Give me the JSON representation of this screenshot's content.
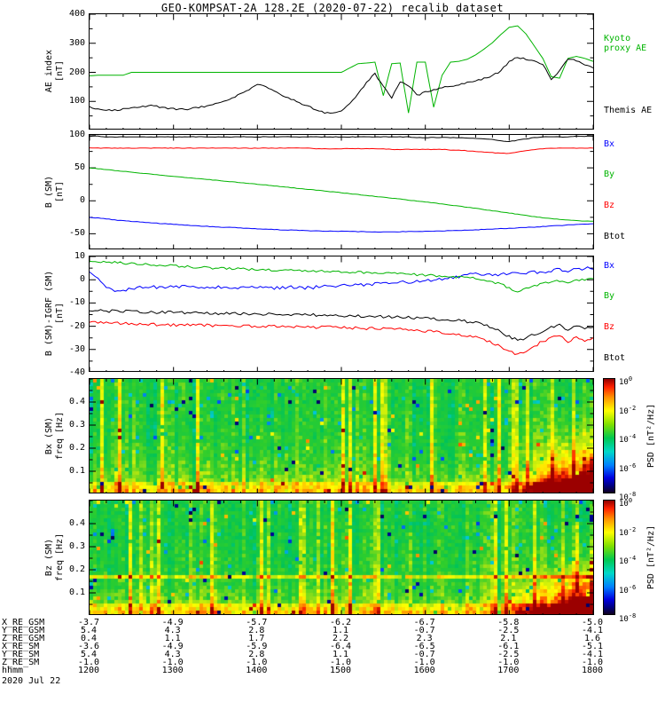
{
  "title": "GEO-KOMPSAT-2A 128.2E (2020-07-22) recalib dataset",
  "colorbar": {
    "label": "PSD [nT²/Hz]",
    "ticks": [
      {
        "base": "10",
        "exp": "0"
      },
      {
        "base": "10",
        "exp": "-2"
      },
      {
        "base": "10",
        "exp": "-4"
      },
      {
        "base": "10",
        "exp": "-6"
      },
      {
        "base": "10",
        "exp": "-8"
      }
    ]
  },
  "footer": {
    "row_labels": [
      "X_RE_GSM",
      "Y_RE_GSM",
      "Z_RE_GSM",
      "X_RE_SM",
      "Y_RE_SM",
      "Z_RE_SM",
      "hhmm"
    ],
    "rows": [
      [
        "-3.7",
        "-4.9",
        "-5.7",
        "-6.2",
        "-6.7",
        "-5.8",
        "-5.0"
      ],
      [
        "5.4",
        "4.3",
        "2.8",
        "1.1",
        "-0.7",
        "-2.5",
        "-4.1"
      ],
      [
        "0.4",
        "1.1",
        "1.7",
        "2.2",
        "2.3",
        "2.1",
        "1.6"
      ],
      [
        "-3.6",
        "-4.9",
        "-5.9",
        "-6.4",
        "-6.5",
        "-6.1",
        "-5.1"
      ],
      [
        "5.4",
        "4.3",
        "2.8",
        "1.1",
        "-0.7",
        "-2.5",
        "-4.1"
      ],
      [
        "-1.0",
        "-1.0",
        "-1.0",
        "-1.0",
        "-1.0",
        "-1.0",
        "-1.0"
      ],
      [
        "1200",
        "1300",
        "1400",
        "1500",
        "1600",
        "1700",
        "1800"
      ]
    ],
    "date": "2020 Jul 22"
  },
  "chart_data": [
    {
      "type": "line",
      "panel": "ae-index",
      "ylabel": "AE index\n[nT]",
      "ylim": [
        0,
        400
      ],
      "yticks": [
        100,
        200,
        300,
        400
      ],
      "xlim": [
        12,
        18
      ],
      "x_unit": "UT decimal hours, 2020 Jul 22",
      "legend": [
        {
          "label": "Kyoto\nproxy AE",
          "color": "#00b400"
        },
        {
          "label": "Themis AE",
          "color": "#000000"
        }
      ],
      "series": [
        {
          "name": "Kyoto proxy AE",
          "color": "#00b400",
          "x_start": 12,
          "x_step": 0.1,
          "jitter": 0,
          "values": [
            188,
            190,
            190,
            190,
            190,
            200,
            200,
            200,
            200,
            200,
            200,
            200,
            200,
            200,
            200,
            200,
            200,
            200,
            200,
            200,
            200,
            200,
            200,
            200,
            200,
            200,
            200,
            200,
            200,
            200,
            200,
            215,
            230,
            232,
            235,
            120,
            230,
            232,
            60,
            235,
            235,
            80,
            190,
            235,
            238,
            245,
            260,
            280,
            302,
            330,
            355,
            360,
            332,
            290,
            248,
            185,
            180,
            248,
            255,
            248,
            238
          ]
        },
        {
          "name": "Themis AE",
          "color": "#000000",
          "x_start": 12,
          "x_step": 0.1,
          "jitter": 3,
          "values": [
            80,
            75,
            72,
            70,
            73,
            76,
            80,
            85,
            83,
            78,
            74,
            72,
            75,
            80,
            85,
            92,
            100,
            112,
            125,
            142,
            158,
            150,
            138,
            120,
            108,
            96,
            84,
            72,
            62,
            60,
            68,
            90,
            125,
            165,
            195,
            150,
            112,
            168,
            155,
            120,
            132,
            140,
            148,
            152,
            158,
            165,
            170,
            178,
            188,
            205,
            238,
            252,
            246,
            238,
            228,
            175,
            205,
            245,
            240,
            225,
            215
          ]
        }
      ]
    },
    {
      "type": "line",
      "panel": "b-sm",
      "ylabel": "B (SM)\n[nT]",
      "ylim": [
        -75,
        100
      ],
      "yticks": [
        -50,
        0,
        50,
        100
      ],
      "xlim": [
        12,
        18
      ],
      "legend": [
        {
          "label": "Bx",
          "color": "#0000ff"
        },
        {
          "label": "By",
          "color": "#00b400"
        },
        {
          "label": "Bz",
          "color": "#ff0000"
        },
        {
          "label": "Btot",
          "color": "#000000"
        }
      ],
      "series": [
        {
          "name": "Bx",
          "color": "#0000ff",
          "x_start": 12,
          "x_step": 0.1,
          "jitter": 0.4,
          "values": [
            -25,
            -26,
            -27.5,
            -29,
            -30,
            -31,
            -32,
            -33,
            -34,
            -34.8,
            -35.6,
            -36.4,
            -37.2,
            -38,
            -38.7,
            -39.4,
            -40,
            -40.6,
            -41.2,
            -41.8,
            -42.4,
            -43,
            -43.5,
            -44,
            -44.4,
            -44.8,
            -45.2,
            -45.5,
            -45.8,
            -46,
            -46.2,
            -46.4,
            -46.6,
            -46.8,
            -47,
            -47,
            -47,
            -46.8,
            -46.6,
            -46.4,
            -46.2,
            -46,
            -45.6,
            -45.2,
            -44.8,
            -44.4,
            -44,
            -43.4,
            -42.8,
            -42.2,
            -41.6,
            -41,
            -40.4,
            -39.8,
            -39,
            -38.2,
            -37.4,
            -36.6,
            -35.8,
            -35.2,
            -34.8
          ]
        },
        {
          "name": "By",
          "color": "#00b400",
          "x_start": 12,
          "x_step": 0.1,
          "jitter": 0.3,
          "values": [
            50,
            48.7,
            47.4,
            46.1,
            44.8,
            43.5,
            42.2,
            41,
            39.7,
            38.4,
            37.2,
            36,
            34.8,
            33.6,
            32.4,
            31.2,
            30,
            28.8,
            27.6,
            26.4,
            25.2,
            24,
            22.7,
            21.4,
            20.1,
            18.8,
            17.5,
            16.2,
            14.9,
            13.6,
            12.3,
            11,
            9.6,
            8.2,
            6.8,
            5.4,
            4,
            2.6,
            1.2,
            -0.2,
            -1.6,
            -3.2,
            -4.8,
            -6.4,
            -8,
            -9.6,
            -11.4,
            -13.2,
            -15,
            -16.8,
            -18.6,
            -20.4,
            -22.2,
            -24,
            -25.6,
            -27,
            -28.2,
            -29.2,
            -30,
            -30.6,
            -31
          ]
        },
        {
          "name": "Bz",
          "color": "#ff0000",
          "x_start": 12,
          "x_step": 0.1,
          "jitter": 0.4,
          "values": [
            80,
            80,
            80,
            80,
            80,
            80,
            80,
            80,
            80,
            80,
            80,
            80,
            80,
            80,
            80,
            80,
            80,
            80,
            80,
            80,
            80,
            80,
            80,
            80,
            80,
            80,
            80,
            79,
            79,
            79,
            79,
            79,
            79,
            79,
            79,
            79,
            78,
            78,
            78,
            78,
            78,
            78,
            78,
            77,
            77,
            76,
            75,
            74,
            73,
            72,
            72,
            74,
            76,
            78,
            79,
            80,
            80,
            80,
            80,
            80,
            80
          ]
        },
        {
          "name": "Btot",
          "color": "#000000",
          "x_start": 12,
          "x_step": 0.1,
          "jitter": 0.4,
          "values": [
            98,
            98,
            97,
            97,
            97,
            97,
            97,
            97,
            97,
            97,
            97,
            97,
            97,
            97,
            97,
            97,
            97,
            97,
            97,
            97,
            97,
            97,
            97,
            97,
            97,
            97,
            97,
            97,
            97,
            97,
            97,
            97,
            97,
            97,
            97,
            97,
            97,
            97,
            97,
            96,
            96,
            96,
            96,
            96,
            96,
            95,
            95,
            94,
            93,
            91,
            90,
            92,
            94,
            96,
            97,
            97,
            97,
            97,
            98,
            98,
            98
          ]
        }
      ]
    },
    {
      "type": "line",
      "panel": "b-sm-igrf",
      "ylabel": "B (SM)-IGRF (SM)\n[nT]",
      "ylim": [
        -40,
        10
      ],
      "yticks": [
        -40,
        -30,
        -20,
        -10,
        0,
        10
      ],
      "xlim": [
        12,
        18
      ],
      "legend": [
        {
          "label": "Bx",
          "color": "#0000ff"
        },
        {
          "label": "By",
          "color": "#00b400"
        },
        {
          "label": "Bz",
          "color": "#ff0000"
        },
        {
          "label": "Btot",
          "color": "#000000"
        }
      ],
      "series": [
        {
          "name": "Bx",
          "color": "#0000ff",
          "x_start": 12,
          "x_step": 0.1,
          "jitter": 0.7,
          "values": [
            3,
            0,
            -3,
            -5,
            -4.5,
            -4,
            -3.5,
            -3,
            -3.2,
            -3.5,
            -3,
            -2.8,
            -3.2,
            -3.6,
            -3.3,
            -3,
            -3.4,
            -3.8,
            -3.5,
            -3.2,
            -3,
            -3.3,
            -3.6,
            -3.4,
            -3.1,
            -3.3,
            -3.5,
            -3.2,
            -3,
            -2.8,
            -2.6,
            -2.4,
            -2.2,
            -2,
            -1.8,
            -1.6,
            -1.4,
            -1.2,
            -1,
            -0.8,
            -0.5,
            0,
            0.5,
            1,
            1.5,
            2,
            2.5,
            2.2,
            2,
            2.4,
            2.8,
            2.5,
            3,
            3.5,
            3,
            4,
            4.5,
            3.8,
            4.5,
            5,
            4.5
          ]
        },
        {
          "name": "By",
          "color": "#00b400",
          "x_start": 12,
          "x_step": 0.1,
          "jitter": 0.5,
          "values": [
            8,
            7.8,
            7.6,
            7.4,
            7.2,
            7,
            6.8,
            6.6,
            6.4,
            6.2,
            6,
            5.8,
            5.6,
            5.4,
            5.2,
            5,
            4.9,
            4.8,
            4.6,
            4.5,
            4.4,
            4.3,
            4.2,
            4.1,
            4,
            3.9,
            3.8,
            3.7,
            3.6,
            3.5,
            3.4,
            3.3,
            3.2,
            3.1,
            3,
            2.9,
            2.8,
            2.6,
            2.4,
            2.2,
            2,
            1.8,
            1.6,
            1.4,
            1.2,
            1,
            0.5,
            0,
            -0.8,
            -2,
            -3.5,
            -5,
            -4,
            -2.5,
            -1.5,
            -1,
            -0.5,
            -1.5,
            -0.5,
            0,
            0.5
          ]
        },
        {
          "name": "Bz",
          "color": "#ff0000",
          "x_start": 12,
          "x_step": 0.1,
          "jitter": 0.6,
          "values": [
            -18,
            -18.3,
            -18.5,
            -18.7,
            -18.8,
            -19,
            -19.1,
            -19.2,
            -19.3,
            -19.3,
            -19.4,
            -19.5,
            -19.5,
            -19.6,
            -19.6,
            -19.7,
            -19.7,
            -19.8,
            -19.8,
            -19.9,
            -20,
            -20,
            -20.1,
            -20.1,
            -20.2,
            -20.2,
            -20.3,
            -20.4,
            -20.4,
            -20.5,
            -20.6,
            -20.7,
            -20.8,
            -20.9,
            -21,
            -21.1,
            -21.2,
            -21.4,
            -21.6,
            -21.8,
            -22,
            -22.3,
            -22.6,
            -23,
            -23.5,
            -24,
            -24.8,
            -25.8,
            -27.2,
            -29,
            -30.8,
            -32,
            -30.5,
            -28.5,
            -26.5,
            -25,
            -24,
            -26.5,
            -24.5,
            -26,
            -25
          ]
        },
        {
          "name": "Btot",
          "color": "#000000",
          "x_start": 12,
          "x_step": 0.1,
          "jitter": 0.6,
          "values": [
            -13,
            -13.2,
            -13.4,
            -13.5,
            -13.6,
            -13.7,
            -13.8,
            -13.9,
            -14,
            -14,
            -14.1,
            -14.2,
            -14.2,
            -14.3,
            -14.4,
            -14.4,
            -14.5,
            -14.5,
            -14.6,
            -14.6,
            -14.7,
            -14.8,
            -14.8,
            -14.9,
            -15,
            -15,
            -15.1,
            -15.2,
            -15.2,
            -15.3,
            -15.4,
            -15.5,
            -15.6,
            -15.7,
            -15.8,
            -15.9,
            -16,
            -16.1,
            -16.2,
            -16.4,
            -16.6,
            -16.8,
            -17,
            -17.3,
            -17.6,
            -18,
            -18.5,
            -19.2,
            -20.5,
            -22.5,
            -24.5,
            -26,
            -25,
            -23.5,
            -22,
            -20.5,
            -19.5,
            -21.5,
            -20,
            -21,
            -20.5
          ]
        }
      ]
    },
    {
      "type": "heatmap",
      "panel": "bx-spectrogram",
      "ylabel": "Bx (SM)\nfreq [Hz]",
      "ylim": [
        0,
        0.5
      ],
      "yticks": [
        0.1,
        0.2,
        0.3,
        0.4
      ],
      "xlim": [
        12,
        18
      ],
      "zlabel": "PSD [nT²/Hz]",
      "z_log10_range": [
        -8,
        0
      ],
      "features": "Broadband power mostly 10^-3 to 10^-2 nT^2/Hz (green) with intermittent yellow burst columns at all frequencies; strongest power (10^-1 to 10^0, orange-red) below ~0.15 Hz after ~17:10; enhanced strip along the lowest frequencies",
      "bands": [
        {
          "freq": 0.03,
          "width": 0.02,
          "boost": 0.1
        }
      ],
      "render_seed": 7
    },
    {
      "type": "heatmap",
      "panel": "bz-spectrogram",
      "ylabel": "Bz (SM)\nfreq [Hz]",
      "ylim": [
        0,
        0.5
      ],
      "yticks": [
        0.1,
        0.2,
        0.3,
        0.4
      ],
      "xlim": [
        12,
        18
      ],
      "zlabel": "PSD [nT²/Hz]",
      "z_log10_range": [
        -8,
        0
      ],
      "features": "Broadband green background with persistent narrow enhanced band near 0.17 Hz and at lowest frequencies; orange-red burst below ~0.15 Hz after ~17:10",
      "bands": [
        {
          "freq": 0.17,
          "width": 0.012,
          "boost": 0.2
        },
        {
          "freq": 0.03,
          "width": 0.02,
          "boost": 0.1
        }
      ],
      "render_seed": 11
    }
  ]
}
